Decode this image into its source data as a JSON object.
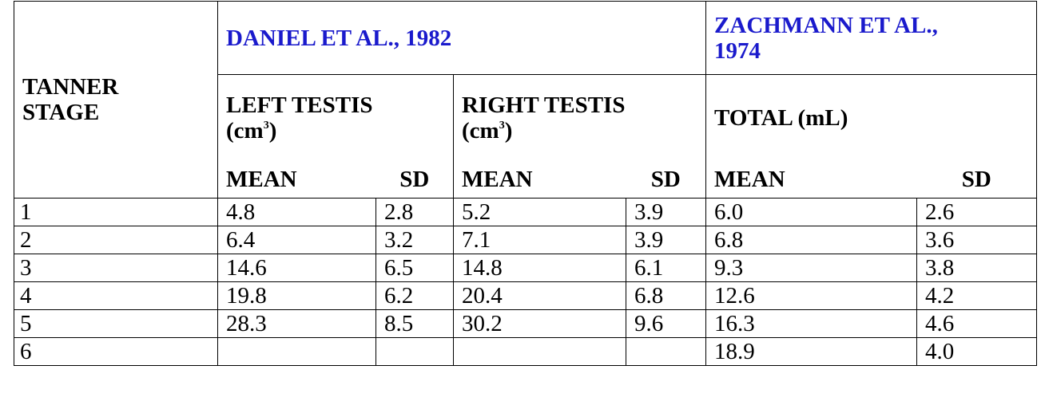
{
  "table": {
    "stage_header_line1": "TANNER",
    "stage_header_line2": "STAGE",
    "group1_title": "DANIEL ET AL., 1982",
    "group2_title_line1": "ZACHMANN ET AL.,",
    "group2_title_line2": "1974",
    "left_testis_line1": "LEFT TESTIS",
    "left_testis_unit": "(cm",
    "right_testis_line1": "RIGHT TESTIS",
    "right_testis_unit": "(cm",
    "unit_exp": "3",
    "unit_close": ")",
    "total_label": "TOTAL (mL)",
    "mean_label": "MEAN",
    "sd_label": "SD",
    "rows": [
      {
        "stage": "1",
        "left_mean": "4.8",
        "left_sd": "2.8",
        "right_mean": "5.2",
        "right_sd": "3.9",
        "total_mean": "6.0",
        "total_sd": "2.6"
      },
      {
        "stage": "2",
        "left_mean": "6.4",
        "left_sd": "3.2",
        "right_mean": "7.1",
        "right_sd": "3.9",
        "total_mean": "6.8",
        "total_sd": "3.6"
      },
      {
        "stage": "3",
        "left_mean": "14.6",
        "left_sd": "6.5",
        "right_mean": "14.8",
        "right_sd": "6.1",
        "total_mean": "9.3",
        "total_sd": "3.8"
      },
      {
        "stage": "4",
        "left_mean": "19.8",
        "left_sd": "6.2",
        "right_mean": "20.4",
        "right_sd": "6.8",
        "total_mean": "12.6",
        "total_sd": "4.2"
      },
      {
        "stage": "5",
        "left_mean": "28.3",
        "left_sd": "8.5",
        "right_mean": "30.2",
        "right_sd": "9.6",
        "total_mean": "16.3",
        "total_sd": "4.6"
      },
      {
        "stage": "6",
        "left_mean": "",
        "left_sd": "",
        "right_mean": "",
        "right_sd": "",
        "total_mean": "18.9",
        "total_sd": "4.0"
      }
    ]
  }
}
